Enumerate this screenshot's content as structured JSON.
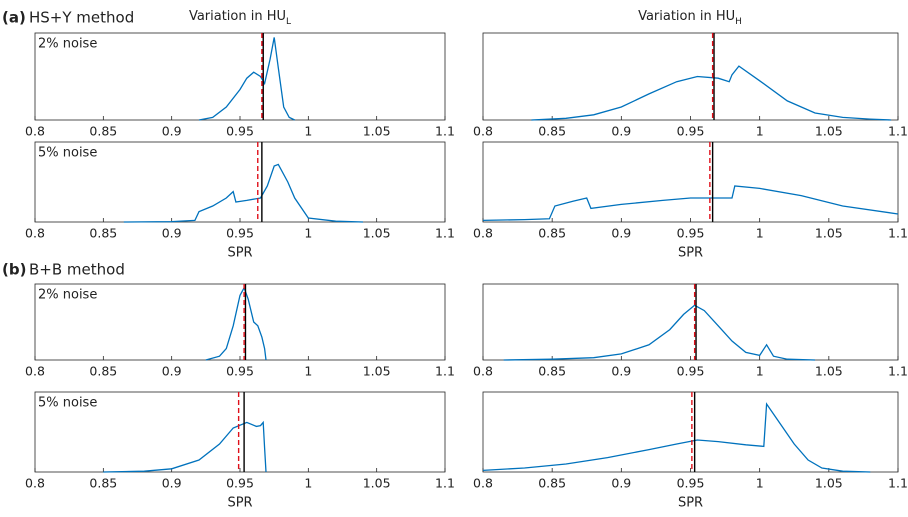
{
  "figure": {
    "row_labels": [
      {
        "letter": "(a)",
        "text": "HS+Y method"
      },
      {
        "letter": "(b)",
        "text": "B+B method"
      }
    ],
    "column_titles": [
      {
        "text": "Variation in HU",
        "subscript": "L"
      },
      {
        "text": "Variation in HU",
        "subscript": "H"
      }
    ]
  },
  "chart_data": [
    {
      "type": "line",
      "annotation": "2% noise",
      "color": "#0072bd",
      "xlim": [
        0.8,
        1.1
      ],
      "ylim": [
        0,
        1
      ],
      "xticks": [
        0.8,
        0.85,
        0.9,
        0.95,
        1,
        1.05,
        1.1
      ],
      "x": [
        0.92,
        0.93,
        0.94,
        0.95,
        0.955,
        0.96,
        0.965,
        0.968,
        0.972,
        0.975,
        0.978,
        0.982,
        0.986,
        0.99
      ],
      "values": [
        0,
        0.03,
        0.15,
        0.35,
        0.48,
        0.55,
        0.5,
        0.42,
        0.7,
        0.95,
        0.6,
        0.15,
        0.03,
        0
      ],
      "vlines": [
        {
          "value": 0.967,
          "color": "#000000",
          "style": "solid"
        },
        {
          "value": 0.966,
          "color": "#e0101a",
          "style": "dashed"
        }
      ]
    },
    {
      "type": "line",
      "annotation": null,
      "color": "#0072bd",
      "xlim": [
        0.8,
        1.1
      ],
      "ylim": [
        0,
        1
      ],
      "xticks": [
        0.8,
        0.85,
        0.9,
        0.95,
        1,
        1.05,
        1.1
      ],
      "x": [
        0.835,
        0.86,
        0.88,
        0.9,
        0.92,
        0.94,
        0.955,
        0.97,
        0.978,
        0.98,
        0.985,
        1.0,
        1.02,
        1.04,
        1.06,
        1.08,
        1.095
      ],
      "values": [
        0,
        0.02,
        0.06,
        0.15,
        0.3,
        0.44,
        0.5,
        0.48,
        0.44,
        0.52,
        0.62,
        0.45,
        0.22,
        0.08,
        0.03,
        0.01,
        0
      ],
      "vlines": [
        {
          "value": 0.967,
          "color": "#000000",
          "style": "solid"
        },
        {
          "value": 0.966,
          "color": "#e0101a",
          "style": "dashed"
        }
      ]
    },
    {
      "type": "line",
      "annotation": "5% noise",
      "xlabel": "SPR",
      "color": "#0072bd",
      "xlim": [
        0.8,
        1.1
      ],
      "ylim": [
        0,
        1
      ],
      "xticks": [
        0.8,
        0.85,
        0.9,
        0.95,
        1,
        1.05,
        1.1
      ],
      "x": [
        0.865,
        0.9,
        0.917,
        0.92,
        0.93,
        0.94,
        0.945,
        0.947,
        0.955,
        0.965,
        0.97,
        0.975,
        0.978,
        0.985,
        0.99,
        1.0,
        1.02,
        1.04
      ],
      "values": [
        0,
        0.005,
        0.02,
        0.13,
        0.2,
        0.3,
        0.38,
        0.25,
        0.27,
        0.3,
        0.45,
        0.7,
        0.72,
        0.5,
        0.3,
        0.05,
        0.01,
        0
      ],
      "vlines": [
        {
          "value": 0.966,
          "color": "#000000",
          "style": "solid"
        },
        {
          "value": 0.963,
          "color": "#e0101a",
          "style": "dashed"
        }
      ]
    },
    {
      "type": "line",
      "annotation": null,
      "xlabel": "SPR",
      "color": "#0072bd",
      "xlim": [
        0.8,
        1.1
      ],
      "ylim": [
        0,
        1
      ],
      "xticks": [
        0.8,
        0.85,
        0.9,
        0.95,
        1,
        1.05,
        1.1
      ],
      "x": [
        0.8,
        0.83,
        0.848,
        0.852,
        0.865,
        0.875,
        0.878,
        0.9,
        0.93,
        0.95,
        0.97,
        0.98,
        0.982,
        1.0,
        1.03,
        1.06,
        1.1
      ],
      "values": [
        0.02,
        0.03,
        0.04,
        0.2,
        0.26,
        0.3,
        0.17,
        0.22,
        0.27,
        0.3,
        0.3,
        0.3,
        0.45,
        0.42,
        0.33,
        0.2,
        0.1
      ],
      "vlines": [
        {
          "value": 0.966,
          "color": "#000000",
          "style": "solid"
        },
        {
          "value": 0.964,
          "color": "#e0101a",
          "style": "dashed"
        }
      ]
    },
    {
      "type": "line",
      "annotation": "2% noise",
      "color": "#0072bd",
      "xlim": [
        0.8,
        1.1
      ],
      "ylim": [
        0,
        1
      ],
      "xticks": [
        0.8,
        0.85,
        0.9,
        0.95,
        1,
        1.05,
        1.1
      ],
      "x": [
        0.925,
        0.935,
        0.94,
        0.945,
        0.95,
        0.953,
        0.956,
        0.96,
        0.963,
        0.966,
        0.968,
        0.969
      ],
      "values": [
        0,
        0.05,
        0.15,
        0.45,
        0.85,
        0.95,
        0.8,
        0.5,
        0.45,
        0.3,
        0.15,
        0
      ],
      "vlines": [
        {
          "value": 0.954,
          "color": "#000000",
          "style": "solid"
        },
        {
          "value": 0.953,
          "color": "#e0101a",
          "style": "dashed"
        }
      ]
    },
    {
      "type": "line",
      "annotation": null,
      "color": "#0072bd",
      "xlim": [
        0.8,
        1.1
      ],
      "ylim": [
        0,
        1
      ],
      "xticks": [
        0.8,
        0.85,
        0.9,
        0.95,
        1,
        1.05,
        1.1
      ],
      "x": [
        0.815,
        0.85,
        0.88,
        0.9,
        0.92,
        0.935,
        0.945,
        0.953,
        0.96,
        0.97,
        0.98,
        0.99,
        1.0,
        1.005,
        1.01,
        1.02,
        1.04
      ],
      "values": [
        0,
        0.01,
        0.03,
        0.08,
        0.2,
        0.4,
        0.6,
        0.72,
        0.65,
        0.45,
        0.25,
        0.1,
        0.06,
        0.2,
        0.05,
        0.01,
        0
      ],
      "vlines": [
        {
          "value": 0.954,
          "color": "#000000",
          "style": "solid"
        },
        {
          "value": 0.953,
          "color": "#e0101a",
          "style": "dashed"
        }
      ]
    },
    {
      "type": "line",
      "annotation": "5% noise",
      "xlabel": "SPR",
      "color": "#0072bd",
      "xlim": [
        0.8,
        1.1
      ],
      "ylim": [
        0,
        1
      ],
      "xticks": [
        0.8,
        0.85,
        0.9,
        0.95,
        1,
        1.05,
        1.1
      ],
      "x": [
        0.85,
        0.88,
        0.9,
        0.92,
        0.935,
        0.945,
        0.955,
        0.962,
        0.965,
        0.967,
        0.968,
        0.969
      ],
      "values": [
        0,
        0.01,
        0.04,
        0.15,
        0.35,
        0.55,
        0.62,
        0.57,
        0.58,
        0.62,
        0.3,
        0
      ],
      "vlines": [
        {
          "value": 0.953,
          "color": "#000000",
          "style": "solid"
        },
        {
          "value": 0.949,
          "color": "#e0101a",
          "style": "dashed"
        }
      ]
    },
    {
      "type": "line",
      "annotation": null,
      "xlabel": "SPR",
      "color": "#0072bd",
      "xlim": [
        0.8,
        1.1
      ],
      "ylim": [
        0,
        1
      ],
      "xticks": [
        0.8,
        0.85,
        0.9,
        0.95,
        1,
        1.05,
        1.1
      ],
      "x": [
        0.8,
        0.83,
        0.86,
        0.89,
        0.92,
        0.94,
        0.955,
        0.97,
        0.99,
        1.003,
        1.005,
        1.015,
        1.025,
        1.035,
        1.045,
        1.06,
        1.08
      ],
      "values": [
        0.02,
        0.05,
        0.1,
        0.18,
        0.28,
        0.35,
        0.4,
        0.38,
        0.34,
        0.32,
        0.85,
        0.6,
        0.35,
        0.15,
        0.05,
        0.01,
        0
      ],
      "vlines": [
        {
          "value": 0.953,
          "color": "#000000",
          "style": "solid"
        },
        {
          "value": 0.951,
          "color": "#e0101a",
          "style": "dashed"
        }
      ]
    }
  ]
}
